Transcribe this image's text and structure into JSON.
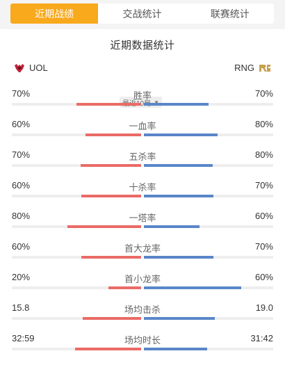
{
  "tabs": [
    {
      "label": "近期战绩",
      "active": true
    },
    {
      "label": "交战统计",
      "active": false
    },
    {
      "label": "联赛统计",
      "active": false
    }
  ],
  "card": {
    "title": "近期数据统计",
    "range_label": "最近10局",
    "left_team": "UOL",
    "right_team": "RNG"
  },
  "colors": {
    "accent": "#f8a91c",
    "left_bar": "#ea6b66",
    "right_bar": "#5a86c8"
  },
  "icons": {
    "left_logo": "uol-logo-icon",
    "right_logo": "rng-logo-icon",
    "dropdown": "caret-down-icon"
  },
  "stats": [
    {
      "name": "胜率",
      "left": "70%",
      "right": "70%",
      "left_ratio": 0.5,
      "right_ratio": 0.5
    },
    {
      "name": "一血率",
      "left": "60%",
      "right": "80%",
      "left_ratio": 0.43,
      "right_ratio": 0.57
    },
    {
      "name": "五杀率",
      "left": "70%",
      "right": "80%",
      "left_ratio": 0.47,
      "right_ratio": 0.53
    },
    {
      "name": "十杀率",
      "left": "60%",
      "right": "70%",
      "left_ratio": 0.46,
      "right_ratio": 0.54
    },
    {
      "name": "一塔率",
      "left": "80%",
      "right": "60%",
      "left_ratio": 0.57,
      "right_ratio": 0.43
    },
    {
      "name": "首大龙率",
      "left": "60%",
      "right": "70%",
      "left_ratio": 0.46,
      "right_ratio": 0.54
    },
    {
      "name": "首小龙率",
      "left": "20%",
      "right": "60%",
      "left_ratio": 0.25,
      "right_ratio": 0.75
    },
    {
      "name": "场均击杀",
      "left": "15.8",
      "right": "19.0",
      "left_ratio": 0.45,
      "right_ratio": 0.55
    },
    {
      "name": "场均时长",
      "left": "32:59",
      "right": "31:42",
      "left_ratio": 0.51,
      "right_ratio": 0.49
    }
  ]
}
